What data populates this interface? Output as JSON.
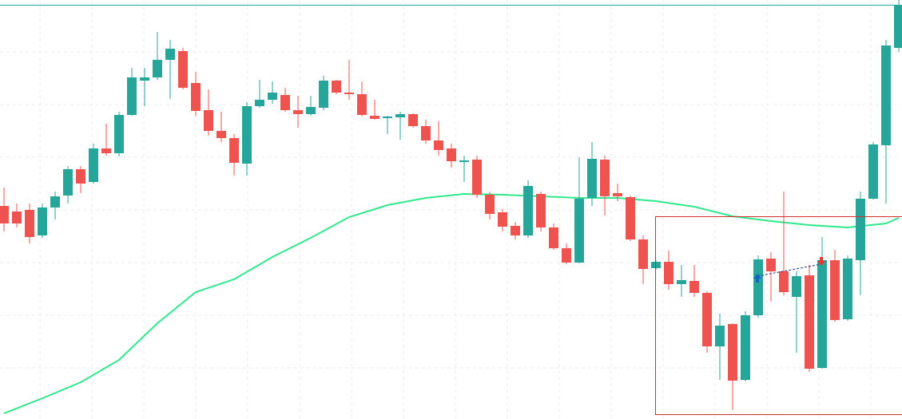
{
  "chart_data": {
    "type": "candlestick",
    "up_color": "#26a69a",
    "down_color": "#ef5350",
    "grid": true,
    "xlim": [
      -0.3125,
      70.25
    ],
    "ylim": [
      0,
      525
    ],
    "xticks": [
      2.81,
      6.88,
      10.94,
      15,
      19.06,
      23.13,
      27.19,
      31.25,
      35.31,
      39.38,
      43.44,
      47.5,
      51.56,
      55.63,
      59.69,
      63.75,
      67.81
    ],
    "yticks": [
      64,
      130,
      196,
      262,
      328,
      394,
      460
    ],
    "x": [
      0,
      1,
      2,
      3,
      4,
      5,
      6,
      7,
      8,
      9,
      10,
      11,
      12,
      13,
      14,
      15,
      16,
      17,
      18,
      19,
      20,
      21,
      22,
      23,
      24,
      25,
      26,
      27,
      28,
      29,
      30,
      31,
      32,
      33,
      34,
      35,
      36,
      37,
      38,
      39,
      40,
      41,
      42,
      43,
      44,
      45,
      46,
      47,
      48,
      49,
      50,
      51,
      52,
      53,
      54,
      55,
      56,
      57,
      58,
      59,
      60,
      61,
      62,
      63,
      64,
      65,
      66,
      67,
      68,
      69,
      70
    ],
    "open": [
      267,
      260,
      262,
      230,
      265,
      280,
      313,
      297,
      339,
      333,
      381,
      424,
      428,
      450,
      461,
      421,
      387,
      361,
      352,
      320,
      392,
      400,
      406,
      387,
      382,
      390,
      424,
      409,
      407,
      380,
      377,
      378,
      382,
      367,
      349,
      339,
      322,
      325,
      281,
      259,
      242,
      230,
      282,
      240,
      214,
      196,
      277,
      325,
      283,
      278,
      225,
      189,
      197,
      169,
      173,
      158,
      91,
      119,
      49,
      130,
      201,
      185,
      153,
      180,
      64,
      199,
      125,
      199,
      276,
      343,
      465
    ],
    "high": [
      290,
      270,
      270,
      270,
      285,
      317,
      317,
      345,
      370,
      385,
      440,
      440,
      485,
      475,
      465,
      435,
      413,
      385,
      357,
      397,
      425,
      423,
      415,
      405,
      405,
      430,
      425,
      450,
      423,
      400,
      380,
      385,
      383,
      375,
      373,
      345,
      330,
      330,
      285,
      263,
      247,
      299,
      285,
      245,
      220,
      328,
      347,
      330,
      295,
      280,
      230,
      199,
      211,
      193,
      193,
      160,
      132,
      120,
      135,
      205,
      209,
      285,
      185,
      193,
      228,
      212,
      205,
      285,
      347,
      475,
      525
    ],
    "low": [
      235,
      240,
      220,
      227,
      250,
      270,
      283,
      295,
      330,
      329,
      380,
      392,
      425,
      401,
      413,
      380,
      355,
      347,
      305,
      305,
      390,
      395,
      385,
      365,
      380,
      387,
      407,
      400,
      379,
      375,
      357,
      350,
      365,
      345,
      330,
      315,
      297,
      277,
      250,
      235,
      225,
      227,
      235,
      212,
      194,
      195,
      267,
      255,
      273,
      223,
      169,
      187,
      162,
      153,
      153,
      83,
      49,
      11,
      47,
      127,
      147,
      155,
      83,
      59,
      63,
      122,
      123,
      155,
      275,
      270,
      460
    ],
    "close": [
      245,
      245,
      228,
      265,
      279,
      313,
      295,
      339,
      333,
      381,
      428,
      428,
      450,
      464,
      415,
      386,
      361,
      352,
      321,
      392,
      400,
      409,
      387,
      382,
      391,
      424,
      409,
      407,
      381,
      376,
      379,
      382,
      367,
      349,
      337,
      323,
      324,
      281,
      257,
      241,
      230,
      292,
      240,
      214,
      196,
      276,
      326,
      279,
      279,
      225,
      188,
      197,
      169,
      174,
      158,
      91,
      117,
      48,
      130,
      200,
      185,
      159,
      179,
      63,
      199,
      124,
      201,
      276,
      344,
      468,
      518
    ],
    "ma": {
      "color": "#2fe88c",
      "x": [
        0,
        3,
        6,
        9,
        12,
        15,
        18,
        21,
        24,
        27,
        30,
        33,
        36,
        39,
        42,
        45,
        48,
        51,
        54,
        57,
        60,
        63,
        66,
        69,
        70
      ],
      "values": [
        7,
        26,
        46,
        74,
        120,
        159,
        175,
        203,
        227,
        253,
        268,
        277,
        282,
        281,
        279,
        277,
        277,
        273,
        266,
        254,
        248,
        243,
        240,
        245,
        252
      ]
    }
  }
}
